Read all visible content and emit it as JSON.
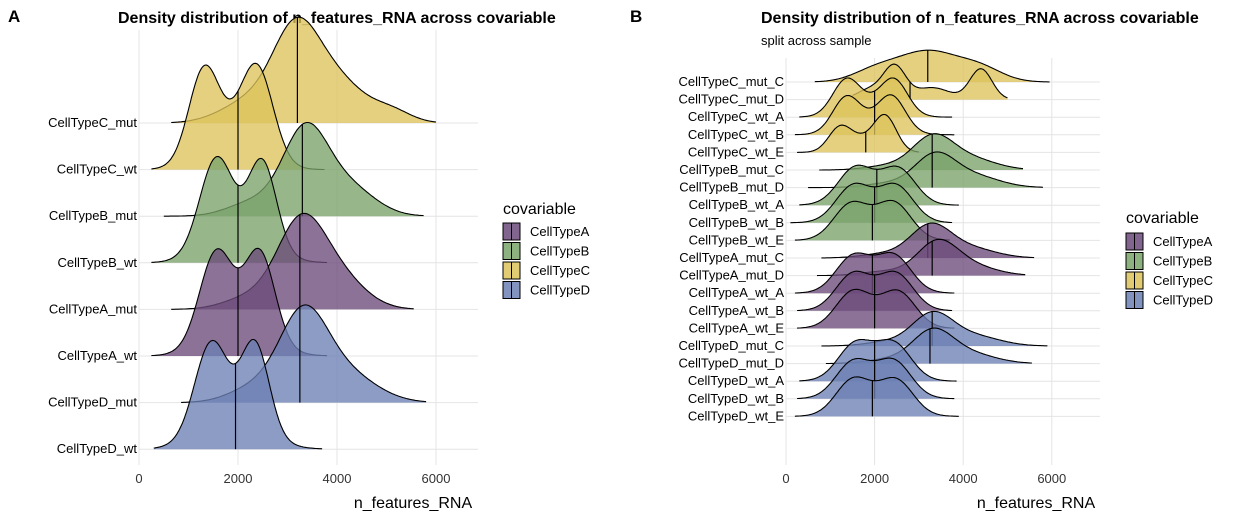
{
  "chart_data": [
    {
      "type": "ridgeline-density",
      "panel_label": "A",
      "title": "Density distribution of n_features_RNA across covariable",
      "subtitle": "",
      "xlabel": "n_features_RNA",
      "xlim": [
        0,
        6000
      ],
      "xticks": [
        0,
        2000,
        4000,
        6000
      ],
      "legend": {
        "title": "covariable",
        "entries": [
          "CellTypeA",
          "CellTypeB",
          "CellTypeC",
          "CellTypeD"
        ]
      },
      "colors": {
        "CellTypeA": "#6b4a7a",
        "CellTypeB": "#7aa36a",
        "CellTypeC": "#dcc35a",
        "CellTypeD": "#6b80b3"
      },
      "groups": [
        {
          "label": "CellTypeD_wt",
          "covariable": "CellTypeD",
          "median": 1950,
          "range": [
            300,
            3700
          ],
          "peaks": [
            [
              1450,
              330,
              0.94
            ],
            [
              2350,
              280,
              0.93
            ],
            [
              1900,
              620,
              0.3
            ]
          ]
        },
        {
          "label": "CellTypeD_mut",
          "covariable": "CellTypeD",
          "median": 3250,
          "range": [
            850,
            5800
          ],
          "peaks": [
            [
              3300,
              480,
              0.88
            ],
            [
              4100,
              650,
              0.33
            ],
            [
              2300,
              500,
              0.15
            ]
          ]
        },
        {
          "label": "CellTypeA_wt",
          "covariable": "CellTypeA",
          "median": 2000,
          "range": [
            250,
            3800
          ],
          "peaks": [
            [
              1550,
              330,
              0.92
            ],
            [
              2450,
              300,
              0.91
            ],
            [
              2000,
              600,
              0.3
            ]
          ]
        },
        {
          "label": "CellTypeA_mut",
          "covariable": "CellTypeA",
          "median": 3250,
          "range": [
            650,
            5550
          ],
          "peaks": [
            [
              3250,
              480,
              0.88
            ],
            [
              4000,
              550,
              0.35
            ],
            [
              2200,
              500,
              0.12
            ]
          ]
        },
        {
          "label": "CellTypeB_wt",
          "covariable": "CellTypeB",
          "median": 2000,
          "range": [
            250,
            3800
          ],
          "peaks": [
            [
              1550,
              330,
              0.92
            ],
            [
              2500,
              280,
              0.9
            ],
            [
              2000,
              600,
              0.3
            ]
          ]
        },
        {
          "label": "CellTypeB_mut",
          "covariable": "CellTypeB",
          "median": 3300,
          "range": [
            500,
            5750
          ],
          "peaks": [
            [
              3350,
              450,
              0.9
            ],
            [
              4200,
              550,
              0.32
            ],
            [
              2300,
              500,
              0.15
            ]
          ]
        },
        {
          "label": "CellTypeC_wt",
          "covariable": "CellTypeC",
          "median": 2000,
          "range": [
            250,
            3750
          ],
          "peaks": [
            [
              1300,
              300,
              0.88
            ],
            [
              2400,
              320,
              0.9
            ],
            [
              1850,
              550,
              0.4
            ]
          ]
        },
        {
          "label": "CellTypeC_mut",
          "covariable": "CellTypeC",
          "median": 3200,
          "range": [
            650,
            6000
          ],
          "peaks": [
            [
              3150,
              450,
              0.82
            ],
            [
              3900,
              600,
              0.5
            ],
            [
              2300,
              600,
              0.25
            ],
            [
              5100,
              400,
              0.12
            ]
          ]
        }
      ]
    },
    {
      "type": "ridgeline-density",
      "panel_label": "B",
      "title": "Density distribution of n_features_RNA across covariable",
      "subtitle": "split across sample",
      "xlabel": "n_features_RNA",
      "xlim": [
        0,
        6000
      ],
      "xticks": [
        0,
        2000,
        4000,
        6000
      ],
      "legend": {
        "title": "covariable",
        "entries": [
          "CellTypeA",
          "CellTypeB",
          "CellTypeC",
          "CellTypeD"
        ]
      },
      "colors": {
        "CellTypeA": "#6b4a7a",
        "CellTypeB": "#7aa36a",
        "CellTypeC": "#dcc35a",
        "CellTypeD": "#6b80b3"
      },
      "groups": [
        {
          "label": "CellTypeD_wt_E",
          "covariable": "CellTypeD",
          "median": 1950,
          "range": [
            200,
            3900
          ],
          "peaks": [
            [
              1500,
              380,
              0.9
            ],
            [
              2500,
              380,
              0.88
            ],
            [
              2000,
              600,
              0.3
            ]
          ]
        },
        {
          "label": "CellTypeD_wt_B",
          "covariable": "CellTypeD",
          "median": 2000,
          "range": [
            250,
            3800
          ],
          "peaks": [
            [
              1500,
              380,
              0.9
            ],
            [
              2450,
              380,
              0.9
            ],
            [
              2000,
              600,
              0.3
            ]
          ]
        },
        {
          "label": "CellTypeD_wt_A",
          "covariable": "CellTypeD",
          "median": 2000,
          "range": [
            300,
            3850
          ],
          "peaks": [
            [
              1550,
              380,
              0.9
            ],
            [
              2450,
              380,
              0.9
            ],
            [
              2000,
              600,
              0.3
            ]
          ]
        },
        {
          "label": "CellTypeD_mut_D",
          "covariable": "CellTypeD",
          "median": 3250,
          "range": [
            900,
            5550
          ],
          "peaks": [
            [
              3300,
              450,
              0.9
            ],
            [
              4100,
              600,
              0.3
            ],
            [
              2300,
              500,
              0.12
            ]
          ]
        },
        {
          "label": "CellTypeD_mut_C",
          "covariable": "CellTypeD",
          "median": 3300,
          "range": [
            800,
            5900
          ],
          "peaks": [
            [
              3300,
              450,
              0.9
            ],
            [
              4200,
              600,
              0.3
            ],
            [
              2300,
              500,
              0.12
            ]
          ]
        },
        {
          "label": "CellTypeA_wt_E",
          "covariable": "CellTypeA",
          "median": 2000,
          "range": [
            250,
            3800
          ],
          "peaks": [
            [
              1500,
              380,
              0.9
            ],
            [
              2550,
              380,
              0.9
            ],
            [
              2000,
              600,
              0.3
            ]
          ]
        },
        {
          "label": "CellTypeA_wt_B",
          "covariable": "CellTypeA",
          "median": 2000,
          "range": [
            250,
            3750
          ],
          "peaks": [
            [
              1500,
              380,
              0.9
            ],
            [
              2500,
              380,
              0.9
            ],
            [
              2000,
              600,
              0.3
            ]
          ]
        },
        {
          "label": "CellTypeA_wt_A",
          "covariable": "CellTypeA",
          "median": 1950,
          "range": [
            200,
            3800
          ],
          "peaks": [
            [
              1500,
              380,
              0.9
            ],
            [
              2450,
              380,
              0.9
            ],
            [
              2000,
              600,
              0.3
            ]
          ]
        },
        {
          "label": "CellTypeA_mut_D",
          "covariable": "CellTypeA",
          "median": 3300,
          "range": [
            700,
            5400
          ],
          "peaks": [
            [
              3400,
              450,
              0.9
            ],
            [
              4100,
              600,
              0.3
            ],
            [
              2200,
              500,
              0.12
            ]
          ]
        },
        {
          "label": "CellTypeA_mut_C",
          "covariable": "CellTypeA",
          "median": 3200,
          "range": [
            800,
            5600
          ],
          "peaks": [
            [
              3250,
              450,
              0.9
            ],
            [
              4100,
              600,
              0.3
            ],
            [
              2200,
              500,
              0.12
            ]
          ]
        },
        {
          "label": "CellTypeB_wt_E",
          "covariable": "CellTypeB",
          "median": 1950,
          "range": [
            200,
            3700
          ],
          "peaks": [
            [
              1450,
              380,
              0.9
            ],
            [
              2450,
              380,
              0.9
            ],
            [
              2000,
              600,
              0.3
            ]
          ]
        },
        {
          "label": "CellTypeB_wt_B",
          "covariable": "CellTypeB",
          "median": 2000,
          "range": [
            100,
            3750
          ],
          "peaks": [
            [
              1500,
              380,
              0.9
            ],
            [
              2500,
              380,
              0.9
            ],
            [
              2000,
              600,
              0.3
            ]
          ]
        },
        {
          "label": "CellTypeB_wt_A",
          "covariable": "CellTypeB",
          "median": 2050,
          "range": [
            300,
            3900
          ],
          "peaks": [
            [
              1550,
              380,
              0.9
            ],
            [
              2550,
              380,
              0.9
            ],
            [
              2000,
              600,
              0.3
            ]
          ]
        },
        {
          "label": "CellTypeB_mut_D",
          "covariable": "CellTypeB",
          "median": 3300,
          "range": [
            500,
            5800
          ],
          "peaks": [
            [
              3350,
              450,
              0.9
            ],
            [
              4200,
              600,
              0.35
            ],
            [
              2300,
              500,
              0.12
            ]
          ]
        },
        {
          "label": "CellTypeB_mut_C",
          "covariable": "CellTypeB",
          "median": 3300,
          "range": [
            750,
            5350
          ],
          "peaks": [
            [
              3300,
              450,
              0.9
            ],
            [
              4100,
              600,
              0.35
            ],
            [
              2300,
              500,
              0.12
            ]
          ]
        },
        {
          "label": "CellTypeC_wt_E",
          "covariable": "CellTypeC",
          "median": 1800,
          "range": [
            250,
            3000
          ],
          "peaks": [
            [
              1200,
              250,
              0.6
            ],
            [
              2250,
              250,
              0.95
            ],
            [
              1700,
              400,
              0.4
            ]
          ]
        },
        {
          "label": "CellTypeC_wt_B",
          "covariable": "CellTypeC",
          "median": 2000,
          "range": [
            200,
            3800
          ],
          "peaks": [
            [
              1350,
              300,
              0.9
            ],
            [
              2400,
              300,
              0.9
            ],
            [
              1900,
              550,
              0.4
            ]
          ]
        },
        {
          "label": "CellTypeC_wt_A",
          "covariable": "CellTypeC",
          "median": 2000,
          "range": [
            300,
            3750
          ],
          "peaks": [
            [
              1350,
              300,
              0.9
            ],
            [
              2450,
              300,
              0.9
            ],
            [
              1900,
              550,
              0.4
            ]
          ]
        },
        {
          "label": "CellTypeC_mut_D",
          "covariable": "CellTypeC",
          "median": 2800,
          "range": [
            1500,
            5000
          ],
          "peaks": [
            [
              2450,
              250,
              0.95
            ],
            [
              4400,
              250,
              0.9
            ],
            [
              3300,
              400,
              0.35
            ],
            [
              1900,
              300,
              0.3
            ]
          ]
        },
        {
          "label": "CellTypeC_mut_C",
          "covariable": "CellTypeC",
          "median": 3200,
          "range": [
            650,
            5950
          ],
          "peaks": [
            [
              3200,
              700,
              0.9
            ],
            [
              4400,
              500,
              0.35
            ],
            [
              2000,
              500,
              0.3
            ]
          ]
        }
      ]
    }
  ]
}
